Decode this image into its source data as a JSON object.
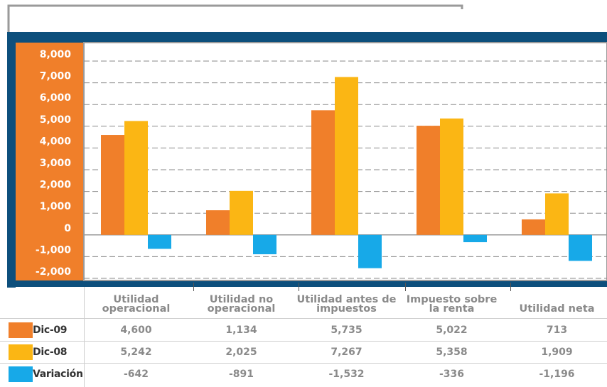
{
  "chart_data": {
    "type": "bar",
    "categories": [
      "Utilidad operacional",
      "Utilidad no operacional",
      "Utilidad antes de impuestos",
      "Impuesto sobre la renta",
      "Utilidad neta"
    ],
    "series": [
      {
        "name": "Dic-09",
        "color": "#f07f2a",
        "values": [
          4600,
          1134,
          5735,
          5022,
          713
        ],
        "value_labels": [
          "4,600",
          "1,134",
          "5,735",
          "5,022",
          "713"
        ]
      },
      {
        "name": "Dic-08",
        "color": "#fbb614",
        "values": [
          5242,
          2025,
          7267,
          5358,
          1909
        ],
        "value_labels": [
          "5,242",
          "2,025",
          "7,267",
          "5,358",
          "1,909"
        ]
      },
      {
        "name": "Variación",
        "color": "#17a9e8",
        "values": [
          -642,
          -891,
          -1532,
          -336,
          -1196
        ],
        "value_labels": [
          "-642",
          "-891",
          "-1,532",
          "-336",
          "-1,196"
        ]
      }
    ],
    "ylim": [
      -2000,
      8000
    ],
    "yticks": [
      {
        "value": -2000,
        "label": "-2,000"
      },
      {
        "value": -1000,
        "label": "-1,000"
      },
      0,
      {
        "value": 1000,
        "label": "1,000"
      },
      {
        "value": 2000,
        "label": "2,000"
      },
      {
        "value": 3000,
        "label": "3,000"
      },
      {
        "value": 4000,
        "label": "4,000"
      },
      {
        "value": 5000,
        "label": "5,000"
      },
      {
        "value": 6000,
        "label": "6,000"
      },
      {
        "value": 7000,
        "label": "7,000"
      },
      {
        "value": 8000,
        "label": "8,000"
      }
    ],
    "grid": true
  }
}
